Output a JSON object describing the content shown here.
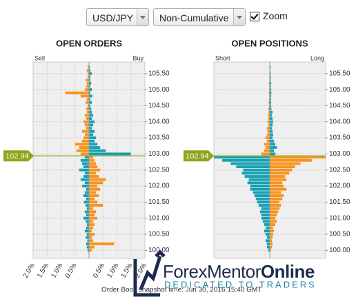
{
  "controls": {
    "pair": "USD/JPY",
    "mode": "Non-Cumulative",
    "zoom": "Zoom"
  },
  "chart_data": [
    {
      "type": "bar",
      "orientation": "horizontal",
      "title": "OPEN ORDERS",
      "current_price": 102.94,
      "levels": [
        100.0,
        100.1,
        100.2,
        100.3,
        100.4,
        100.5,
        100.6,
        100.7,
        100.8,
        100.9,
        101.0,
        101.1,
        101.2,
        101.3,
        101.4,
        101.5,
        101.6,
        101.7,
        101.8,
        101.9,
        102.0,
        102.1,
        102.2,
        102.3,
        102.4,
        102.5,
        102.6,
        102.7,
        102.8,
        102.9,
        103.0,
        103.1,
        103.2,
        103.3,
        103.4,
        103.5,
        103.6,
        103.7,
        103.8,
        103.9,
        104.0,
        104.1,
        104.2,
        104.3,
        104.4,
        104.5,
        104.6,
        104.7,
        104.8,
        104.9,
        105.0,
        105.1,
        105.2,
        105.3,
        105.4,
        105.5,
        105.6,
        105.7
      ],
      "series": [
        {
          "name": "Sell",
          "color": "#16a0b4",
          "color_above": "#f7931e",
          "values": [
            -0.05,
            -0.08,
            -0.1,
            -0.06,
            -0.12,
            -0.08,
            -0.15,
            -0.1,
            -0.07,
            -0.12,
            -0.2,
            -0.1,
            -0.15,
            -0.08,
            -0.12,
            -0.18,
            -0.1,
            -0.2,
            -0.15,
            -0.1,
            -0.25,
            -0.15,
            -0.3,
            -0.2,
            -0.15,
            -0.35,
            -0.2,
            -0.25,
            -0.3,
            -0.15,
            -0.3,
            -0.45,
            -0.35,
            -0.5,
            -0.25,
            -0.2,
            -0.15,
            -0.25,
            -0.1,
            -0.15,
            -0.2,
            -0.1,
            -0.15,
            -0.08,
            -0.1,
            -0.05,
            -0.12,
            -0.08,
            -0.3,
            -0.85,
            -0.15,
            -0.1,
            -0.08,
            -0.12,
            -0.05,
            -0.05,
            -0.08,
            -0.04
          ]
        },
        {
          "name": "Buy",
          "color": "#f7931e",
          "color_above": "#16a0b4",
          "values": [
            0.1,
            0.2,
            0.9,
            0.15,
            0.1,
            0.2,
            0.1,
            0.15,
            0.2,
            0.15,
            0.3,
            0.2,
            0.25,
            0.15,
            0.5,
            0.3,
            0.2,
            0.35,
            0.25,
            0.4,
            0.3,
            0.5,
            0.6,
            0.35,
            0.25,
            0.4,
            0.3,
            0.25,
            0.2,
            0.15,
            1.5,
            0.6,
            0.4,
            0.3,
            0.2,
            0.25,
            0.15,
            0.2,
            0.1,
            0.15,
            0.2,
            0.1,
            0.15,
            0.1,
            0.08,
            0.05,
            0.1,
            0.05,
            0.12,
            0.05,
            0.1,
            0.05,
            0.08,
            0.05,
            0.05,
            0.1,
            0.05,
            0.03
          ]
        }
      ],
      "xlim": [
        -2,
        2
      ],
      "xticks": [
        {
          "value": -2,
          "label": "2.0%"
        },
        {
          "value": -1.5,
          "label": "1.5%"
        },
        {
          "value": -1,
          "label": "1.0%"
        },
        {
          "value": -0.5,
          "label": "0.5%"
        },
        {
          "value": 0.5,
          "label": "0.5%"
        },
        {
          "value": 1,
          "label": "1.0%"
        },
        {
          "value": 1.5,
          "label": "1.5%"
        },
        {
          "value": 2,
          "label": "2.0%"
        }
      ],
      "ylim": [
        99.75,
        105.86
      ],
      "yticks": [
        {
          "value": 100,
          "label": "100.00"
        },
        {
          "value": 100.5,
          "label": "100.50"
        },
        {
          "value": 101,
          "label": "101.00"
        },
        {
          "value": 101.5,
          "label": "101.50"
        },
        {
          "value": 102,
          "label": "102.00"
        },
        {
          "value": 102.5,
          "label": "102.50"
        },
        {
          "value": 103,
          "label": "103.00"
        },
        {
          "value": 103.5,
          "label": "103.50"
        },
        {
          "value": 104,
          "label": "104.00"
        },
        {
          "value": 104.5,
          "label": "104.50"
        },
        {
          "value": 105,
          "label": "105.00"
        },
        {
          "value": 105.5,
          "label": "105.50"
        }
      ],
      "grid": true
    },
    {
      "type": "bar",
      "orientation": "horizontal",
      "title": "OPEN POSITIONS",
      "current_price": 102.94,
      "levels": [
        100.0,
        100.1,
        100.2,
        100.3,
        100.4,
        100.5,
        100.6,
        100.7,
        100.8,
        100.9,
        101.0,
        101.1,
        101.2,
        101.3,
        101.4,
        101.5,
        101.6,
        101.7,
        101.8,
        101.9,
        102.0,
        102.1,
        102.2,
        102.3,
        102.4,
        102.5,
        102.6,
        102.7,
        102.8,
        102.9,
        103.0,
        103.1,
        103.2,
        103.3,
        103.4,
        103.5,
        103.6,
        103.7,
        103.8,
        103.9,
        104.0,
        104.1,
        104.2,
        104.3,
        104.4,
        104.5,
        104.6,
        104.7,
        104.8,
        104.9,
        105.0,
        105.1,
        105.2,
        105.3,
        105.4,
        105.5,
        105.6,
        105.7
      ],
      "series": [
        {
          "name": "Short",
          "color": "#16a0b4",
          "color_above": "#f7931e",
          "values": [
            -0.05,
            -0.1,
            -0.1,
            -0.15,
            -0.1,
            -0.15,
            -0.2,
            -0.15,
            -0.2,
            -0.25,
            -0.3,
            -0.3,
            -0.35,
            -0.3,
            -0.4,
            -0.45,
            -0.5,
            -0.55,
            -0.6,
            -0.7,
            -0.7,
            -0.8,
            -0.75,
            -0.9,
            -1.0,
            -0.95,
            -1.2,
            -1.4,
            -1.7,
            -2.0,
            -0.3,
            -0.2,
            -0.15,
            -0.2,
            -0.1,
            -0.15,
            -0.1,
            -0.08,
            -0.1,
            -0.05,
            -0.08,
            -0.05,
            -0.06,
            -0.04,
            -0.05,
            -0.03,
            -0.04,
            -0.03,
            -0.02,
            -0.03,
            -0.02,
            -0.02,
            -0.03,
            -0.02,
            -0.01,
            -0.02,
            -0.01,
            -0.01
          ]
        },
        {
          "name": "Long",
          "color": "#f7931e",
          "color_above": "#16a0b4",
          "values": [
            0.05,
            0.08,
            0.1,
            0.08,
            0.1,
            0.12,
            0.15,
            0.12,
            0.2,
            0.25,
            0.2,
            0.25,
            0.3,
            0.35,
            0.4,
            0.35,
            0.45,
            0.5,
            0.4,
            0.6,
            0.5,
            0.45,
            0.6,
            0.55,
            0.7,
            0.8,
            0.9,
            1.1,
            1.5,
            2.0,
            0.2,
            0.15,
            0.25,
            0.2,
            0.15,
            0.1,
            0.12,
            0.1,
            0.08,
            0.1,
            0.12,
            0.1,
            0.08,
            0.1,
            0.06,
            0.05,
            0.05,
            0.04,
            0.05,
            0.06,
            0.05,
            0.04,
            0.05,
            0.03,
            0.04,
            0.03,
            0.02,
            0.03
          ]
        }
      ],
      "xlim": [
        -2,
        2
      ],
      "ylim": [
        99.75,
        105.86
      ],
      "yticks": [
        {
          "value": 100,
          "label": "100.00"
        },
        {
          "value": 100.5,
          "label": "100.50"
        },
        {
          "value": 101,
          "label": "101.00"
        },
        {
          "value": 101.5,
          "label": "101.50"
        },
        {
          "value": 102,
          "label": "102.00"
        },
        {
          "value": 102.5,
          "label": "102.50"
        },
        {
          "value": 103,
          "label": "103.00"
        },
        {
          "value": 103.5,
          "label": "103.50"
        },
        {
          "value": 104,
          "label": "104.00"
        },
        {
          "value": 104.5,
          "label": "104.50"
        },
        {
          "value": 105,
          "label": "105.00"
        },
        {
          "value": 105.5,
          "label": "105.50"
        }
      ],
      "grid": true
    }
  ],
  "footer": "Order Book snapshot time: Jun 30, 2016 15:40 GMT",
  "logo": {
    "part1": "Forex",
    "part2": "Mentor",
    "part3": "Online",
    "tagline": "DEDICATED TO TRADERS"
  }
}
